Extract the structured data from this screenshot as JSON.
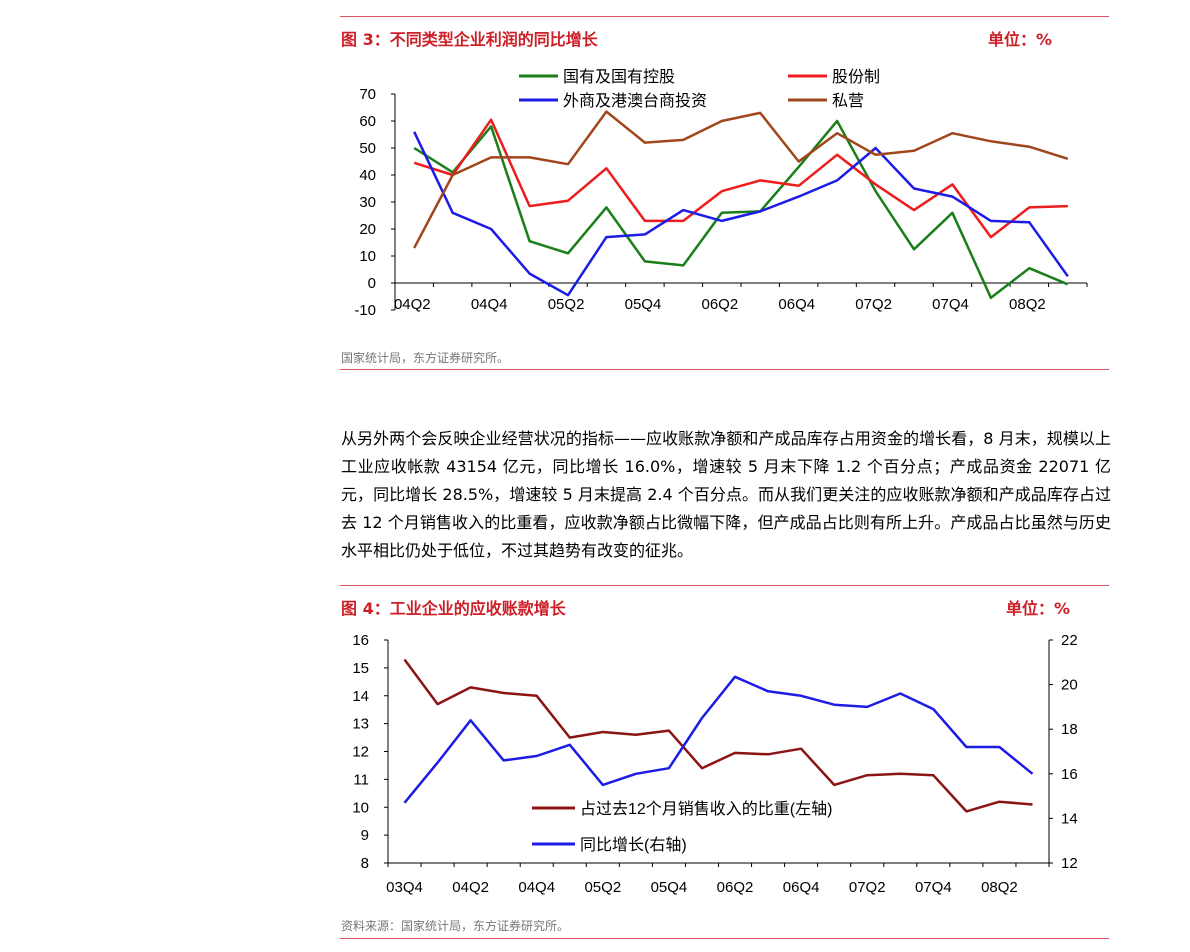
{
  "figure3": {
    "title": "图 3：不同类型企业利润的同比增长",
    "unit": "单位：%",
    "source": "国家统计局，东方证券研究所。"
  },
  "paragraph": "从另外两个会反映企业经营状况的指标——应收账款净额和产成品库存占用资金的增长看，8 月末，规模以上工业应收帐款 43154 亿元，同比增长 16.0%，增速较 5 月末下降 1.2 个百分点；产成品资金 22071 亿元，同比增长 28.5%，增速较 5 月末提高 2.4 个百分点。而从我们更关注的应收账款净额和产成品库存占过去 12 个月销售收入的比重看，应收款净额占比微幅下降，但产成品占比则有所上升。产成品占比虽然与历史水平相比仍处于低位，不过其趋势有改变的征兆。",
  "figure4": {
    "title": "图 4：工业企业的应收账款增长",
    "unit": "单位：%",
    "source": "资料来源：国家统计局，东方证券研究所。"
  },
  "chart_data": [
    {
      "type": "line",
      "title": "图 3：不同类型企业利润的同比增长",
      "ylim": [
        -10,
        70
      ],
      "yticks": [
        "70",
        "60",
        "50",
        "40",
        "30",
        "20",
        "10",
        "0",
        "-10"
      ],
      "xticks": [
        "04Q2",
        "04Q4",
        "05Q2",
        "05Q4",
        "06Q2",
        "06Q4",
        "07Q2",
        "07Q4",
        "08Q2"
      ],
      "n_points": 18,
      "series": [
        {
          "name": "国有及国有控股",
          "color": "#1a7f1a",
          "values": [
            50,
            41,
            58,
            15.5,
            11,
            28,
            8,
            6.5,
            26,
            26.5,
            43,
            60,
            34,
            12.5,
            26,
            -5.5,
            5.5,
            -0.5
          ]
        },
        {
          "name": "股份制",
          "color": "#ee1c1c",
          "values": [
            44.5,
            40,
            60.5,
            28.5,
            30.5,
            42.5,
            23,
            23,
            34,
            38,
            36,
            47.5,
            36.5,
            27,
            36.5,
            17,
            28,
            28.5
          ]
        },
        {
          "name": "外商及港澳台商投资",
          "color": "#1c1ce6",
          "values": [
            56,
            26,
            20,
            3.5,
            -4.5,
            17,
            18,
            27,
            23,
            26.5,
            32,
            38,
            50,
            35,
            32,
            23,
            22.5,
            2.5
          ]
        },
        {
          "name": "私营",
          "color": "#a0461c",
          "values": [
            13,
            40,
            46.5,
            46.5,
            44,
            63.5,
            52,
            53,
            60,
            63,
            45,
            55.5,
            47.5,
            49,
            55.5,
            52.5,
            50.5,
            46
          ]
        }
      ]
    },
    {
      "type": "line",
      "title": "图 4：工业企业的应收账款增长",
      "ylim_left": [
        8,
        16
      ],
      "ylim_right": [
        12,
        22
      ],
      "yticks_left": [
        "16",
        "15",
        "14",
        "13",
        "12",
        "11",
        "10",
        "9",
        "8"
      ],
      "yticks_right": [
        "22",
        "20",
        "18",
        "16",
        "14",
        "12"
      ],
      "xticks": [
        "03Q4",
        "04Q2",
        "04Q4",
        "05Q2",
        "05Q4",
        "06Q2",
        "06Q4",
        "07Q2",
        "07Q4",
        "08Q2"
      ],
      "n_points": 20,
      "series": [
        {
          "name": "占过去12个月销售收入的比重(左轴)",
          "color": "#8b1414",
          "axis": "left",
          "values": [
            15.3,
            13.7,
            14.3,
            14.1,
            14.0,
            12.5,
            12.7,
            12.6,
            12.75,
            11.4,
            11.95,
            11.9,
            12.1,
            10.8,
            11.15,
            11.2,
            11.15,
            9.85,
            10.2,
            10.1
          ]
        },
        {
          "name": "同比增长(右轴)",
          "color": "#1c1ce6",
          "axis": "right",
          "values": [
            14.7,
            16.5,
            18.4,
            16.6,
            16.8,
            17.3,
            15.5,
            16.0,
            16.25,
            18.5,
            20.35,
            19.7,
            19.5,
            19.1,
            19.0,
            19.6,
            18.9,
            17.2,
            17.2,
            16.0
          ]
        }
      ]
    }
  ]
}
